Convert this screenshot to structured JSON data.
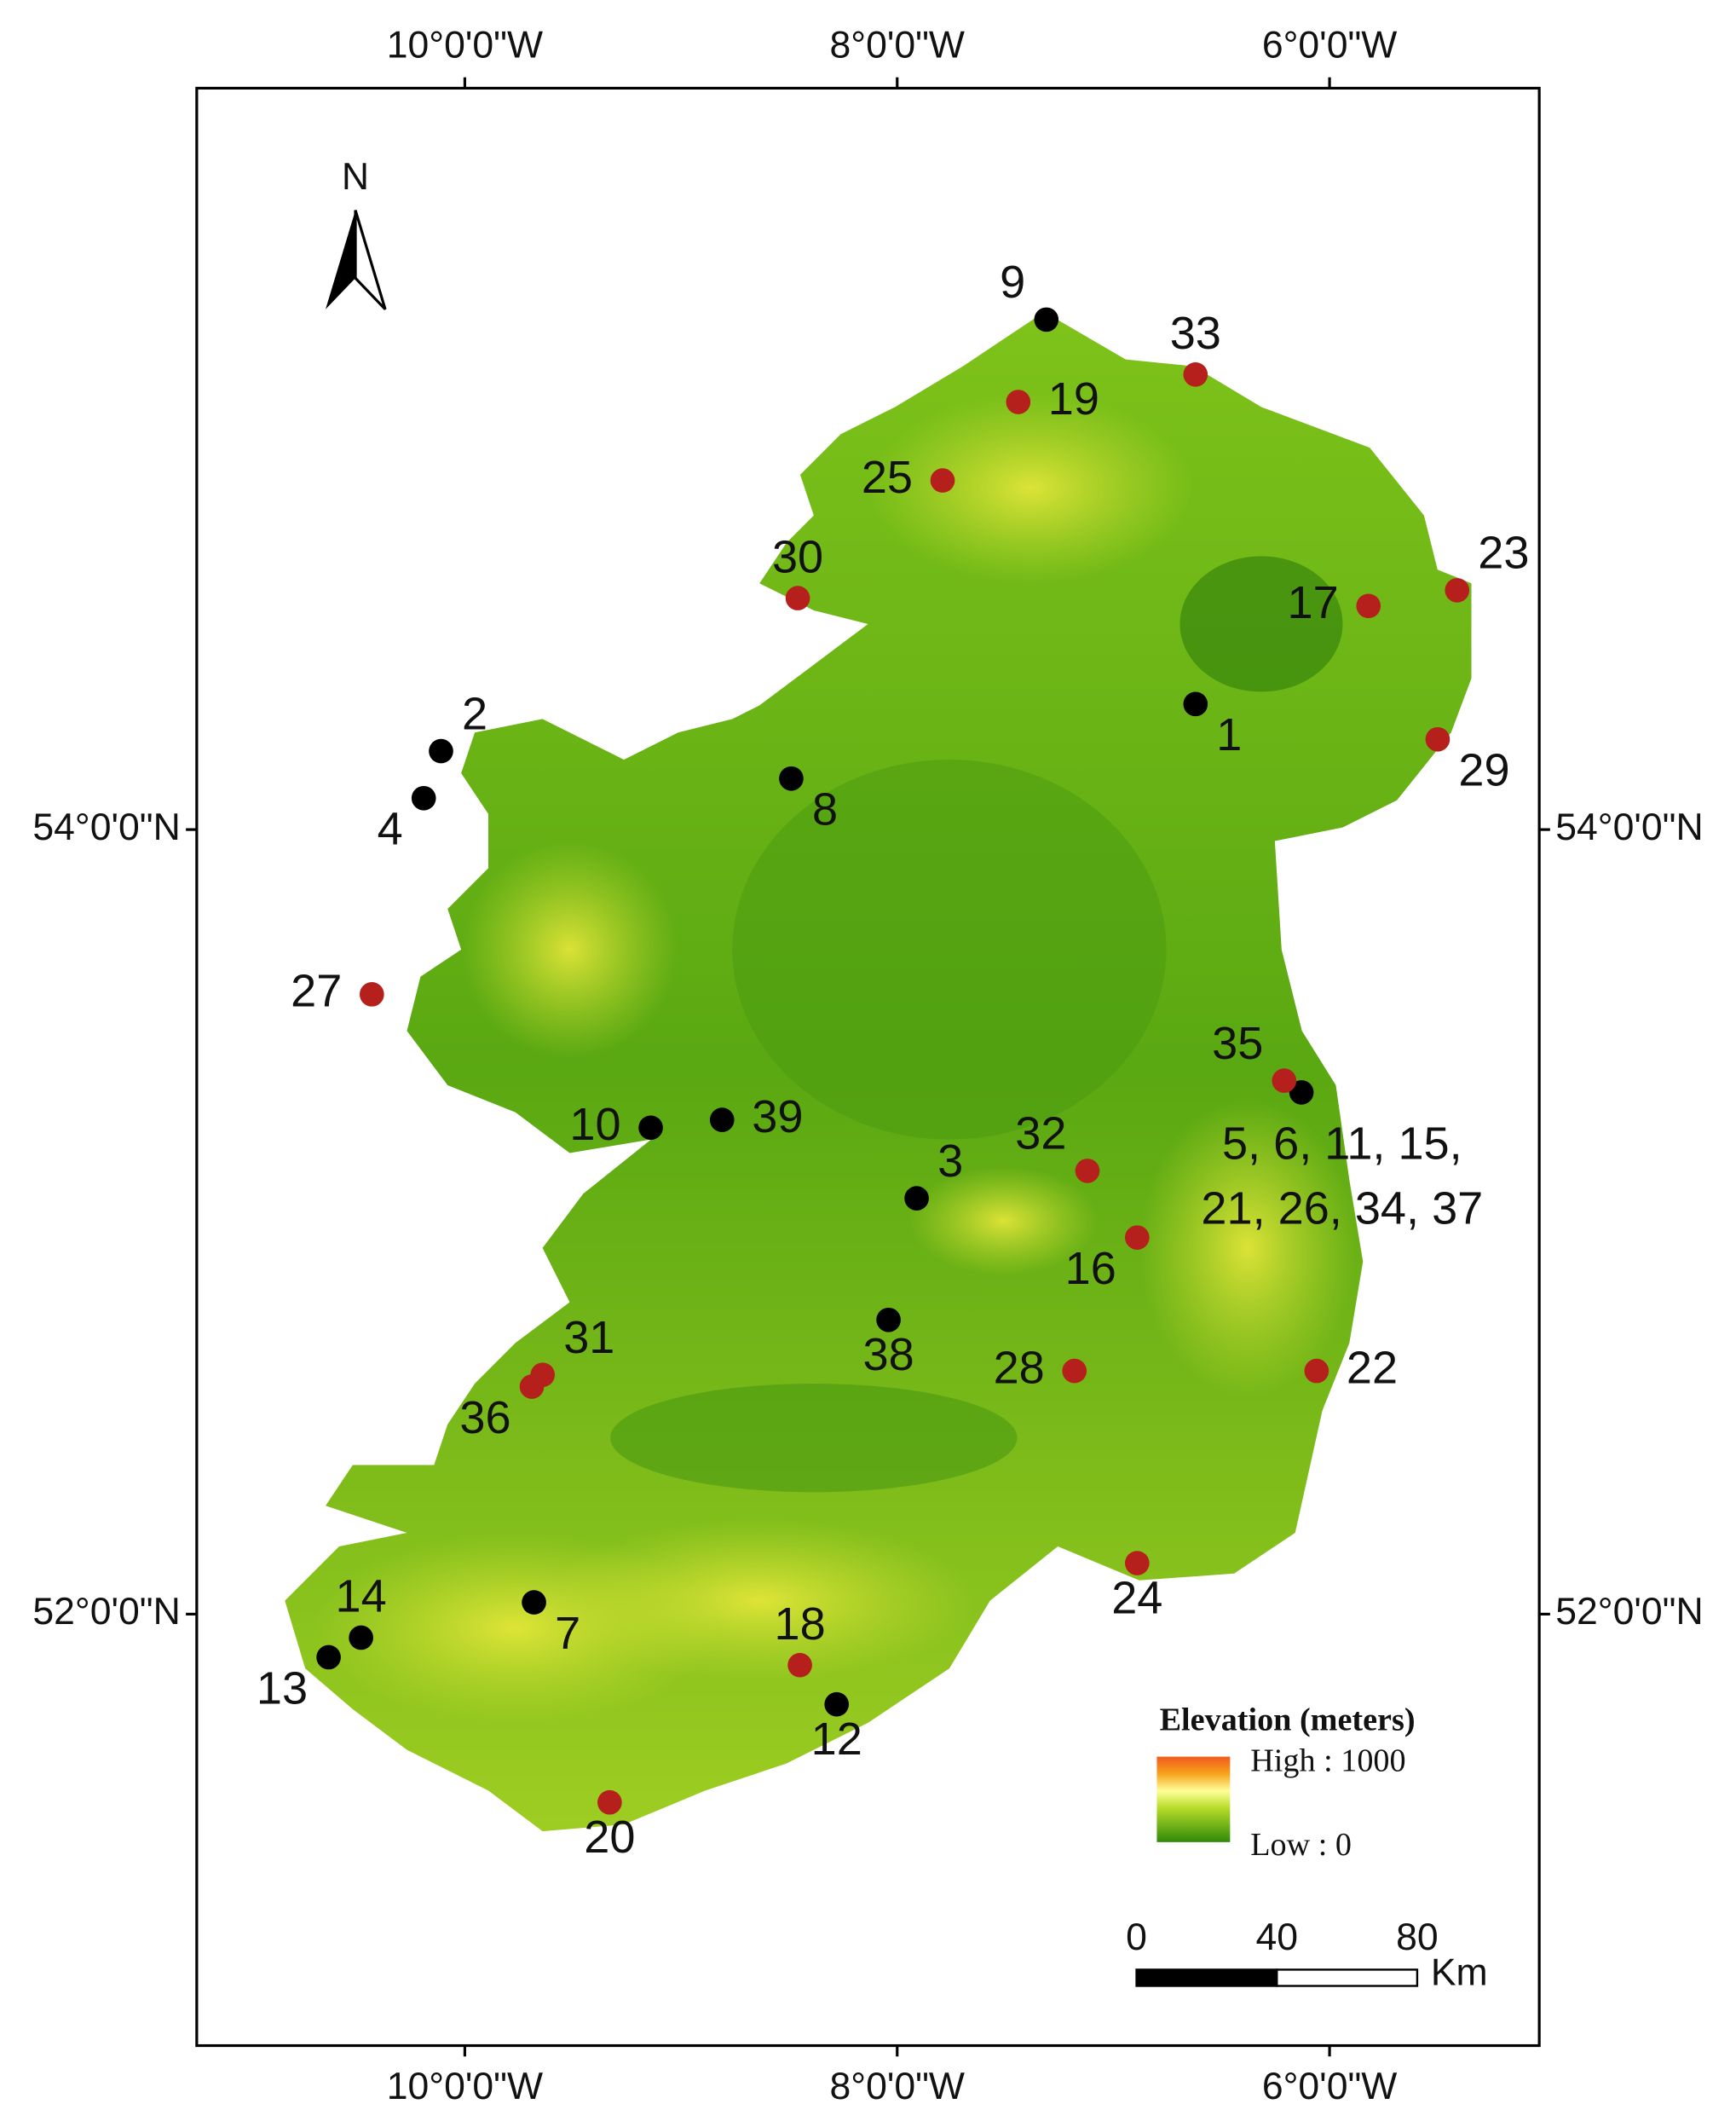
{
  "map": {
    "xlim": [
      -11.24,
      -5.03
    ],
    "ylim": [
      50.9,
      55.89
    ],
    "xticks": [
      {
        "value": -10,
        "label": "10°0'0\"W"
      },
      {
        "value": -8,
        "label": "8°0'0\"W"
      },
      {
        "value": -6,
        "label": "6°0'0\"W"
      }
    ],
    "yticks": [
      {
        "value": 54,
        "label": "54°0'0\"N"
      },
      {
        "value": 52,
        "label": "52°0'0\"N"
      }
    ],
    "north_label": "N",
    "sites": [
      {
        "label": "1",
        "lon": -6.62,
        "lat": 54.32,
        "color": "#000000",
        "label_pos": "se"
      },
      {
        "label": "2",
        "lon": -10.11,
        "lat": 54.2,
        "color": "#000000",
        "label_pos": "ne"
      },
      {
        "label": "3",
        "lon": -7.91,
        "lat": 53.06,
        "color": "#000000",
        "label_pos": "ne"
      },
      {
        "label": "4",
        "lon": -10.19,
        "lat": 54.08,
        "color": "#000000",
        "label_pos": "sw"
      },
      {
        "label": [
          "5, 6, 11, 15,",
          "21, 26, 34, 37"
        ],
        "lon": -6.13,
        "lat": 53.33,
        "color": "#000000",
        "label_pos": "s"
      },
      {
        "label": "7",
        "lon": -9.68,
        "lat": 52.03,
        "color": "#000000",
        "label_pos": "se"
      },
      {
        "label": "8",
        "lon": -8.49,
        "lat": 54.13,
        "color": "#000000",
        "label_pos": "se"
      },
      {
        "label": "9",
        "lon": -7.31,
        "lat": 55.3,
        "color": "#000000",
        "label_pos": "nw"
      },
      {
        "label": "10",
        "lon": -9.14,
        "lat": 53.24,
        "color": "#000000",
        "label_pos": "w"
      },
      {
        "label": "12",
        "lon": -8.28,
        "lat": 51.77,
        "color": "#000000",
        "label_pos": "s"
      },
      {
        "label": "13",
        "lon": -10.63,
        "lat": 51.89,
        "color": "#000000",
        "label_pos": "sw"
      },
      {
        "label": "14",
        "lon": -10.48,
        "lat": 51.94,
        "color": "#000000",
        "label_pos": "n"
      },
      {
        "label": "38",
        "lon": -8.04,
        "lat": 52.75,
        "color": "#000000",
        "label_pos": "s"
      },
      {
        "label": "39",
        "lon": -8.81,
        "lat": 53.26,
        "color": "#000000",
        "label_pos": "e"
      },
      {
        "label": "16",
        "lon": -6.89,
        "lat": 52.96,
        "color": "#b5201c",
        "label_pos": "sw"
      },
      {
        "label": "17",
        "lon": -5.82,
        "lat": 54.57,
        "color": "#b5201c",
        "label_pos": "w"
      },
      {
        "label": "18",
        "lon": -8.45,
        "lat": 51.87,
        "color": "#b5201c",
        "label_pos": "n"
      },
      {
        "label": "19",
        "lon": -7.44,
        "lat": 55.09,
        "color": "#b5201c",
        "label_pos": "e"
      },
      {
        "label": "20",
        "lon": -9.33,
        "lat": 51.52,
        "color": "#b5201c",
        "label_pos": "s"
      },
      {
        "label": "22",
        "lon": -6.06,
        "lat": 52.62,
        "color": "#b5201c",
        "label_pos": "e"
      },
      {
        "label": "23",
        "lon": -5.41,
        "lat": 54.61,
        "color": "#b5201c",
        "label_pos": "ne"
      },
      {
        "label": "24",
        "lon": -6.89,
        "lat": 52.13,
        "color": "#b5201c",
        "label_pos": "s"
      },
      {
        "label": "25",
        "lon": -7.79,
        "lat": 54.89,
        "color": "#b5201c",
        "label_pos": "w"
      },
      {
        "label": "27",
        "lon": -10.43,
        "lat": 53.58,
        "color": "#b5201c",
        "label_pos": "w"
      },
      {
        "label": "28",
        "lon": -7.18,
        "lat": 52.62,
        "color": "#b5201c",
        "label_pos": "w"
      },
      {
        "label": "29",
        "lon": -5.5,
        "lat": 54.23,
        "color": "#b5201c",
        "label_pos": "se"
      },
      {
        "label": "30",
        "lon": -8.46,
        "lat": 54.59,
        "color": "#b5201c",
        "label_pos": "n"
      },
      {
        "label": "31",
        "lon": -9.64,
        "lat": 52.61,
        "color": "#b5201c",
        "label_pos": "ne"
      },
      {
        "label": "32",
        "lon": -7.12,
        "lat": 53.13,
        "color": "#b5201c",
        "label_pos": "nw"
      },
      {
        "label": "33",
        "lon": -6.62,
        "lat": 55.16,
        "color": "#b5201c",
        "label_pos": "n"
      },
      {
        "label": "35",
        "lon": -6.21,
        "lat": 53.36,
        "color": "#b5201c",
        "label_pos": "nw"
      },
      {
        "label": "36",
        "lon": -9.69,
        "lat": 52.58,
        "color": "#b5201c",
        "label_pos": "sw"
      }
    ],
    "legend": {
      "title": "Elevation (meters)",
      "high": "High : 1000",
      "low": "Low : 0"
    },
    "scale_bar": {
      "ticks": [
        0,
        40,
        80
      ],
      "unit": "Km"
    }
  }
}
